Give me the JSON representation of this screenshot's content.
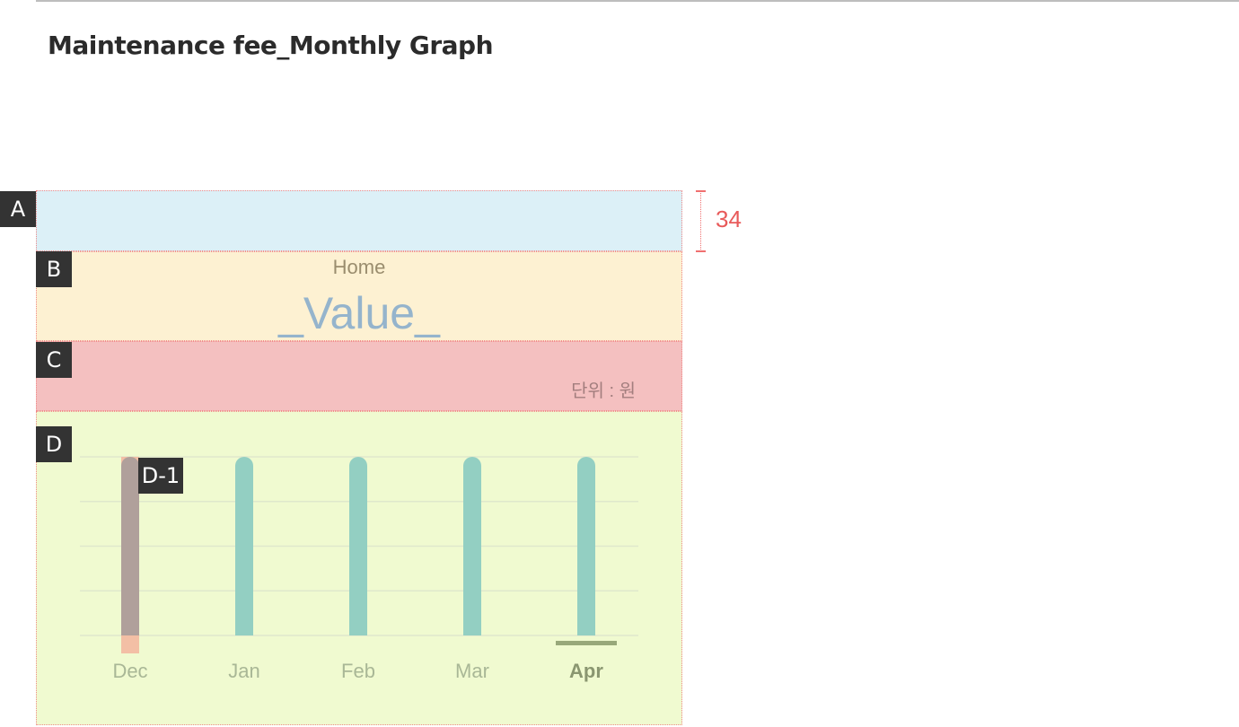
{
  "page_title": "Maintenance fee_Monthly Graph",
  "tags": {
    "a": "A",
    "b": "B",
    "c": "C",
    "d": "D",
    "d1": "D-1"
  },
  "dimension_label": "34",
  "header": {
    "title": "Home",
    "value": "_Value_"
  },
  "unit": "단위 : 원",
  "colors": {
    "bar": "#93cfc2",
    "bar_selected": "#b0a09b",
    "selected_highlight": "#f3b8a0",
    "active_indicator": "#98a87a",
    "label": "#a9b796",
    "label_active": "#8a9670",
    "grid": "#dfe8cc"
  },
  "chart_data": {
    "type": "bar",
    "categories": [
      "Dec",
      "Jan",
      "Feb",
      "Mar",
      "Apr"
    ],
    "values": [
      1,
      1,
      1,
      1,
      1
    ],
    "ylim": [
      0,
      1
    ],
    "grid": true,
    "selected_index": 0,
    "active_index": 4
  }
}
